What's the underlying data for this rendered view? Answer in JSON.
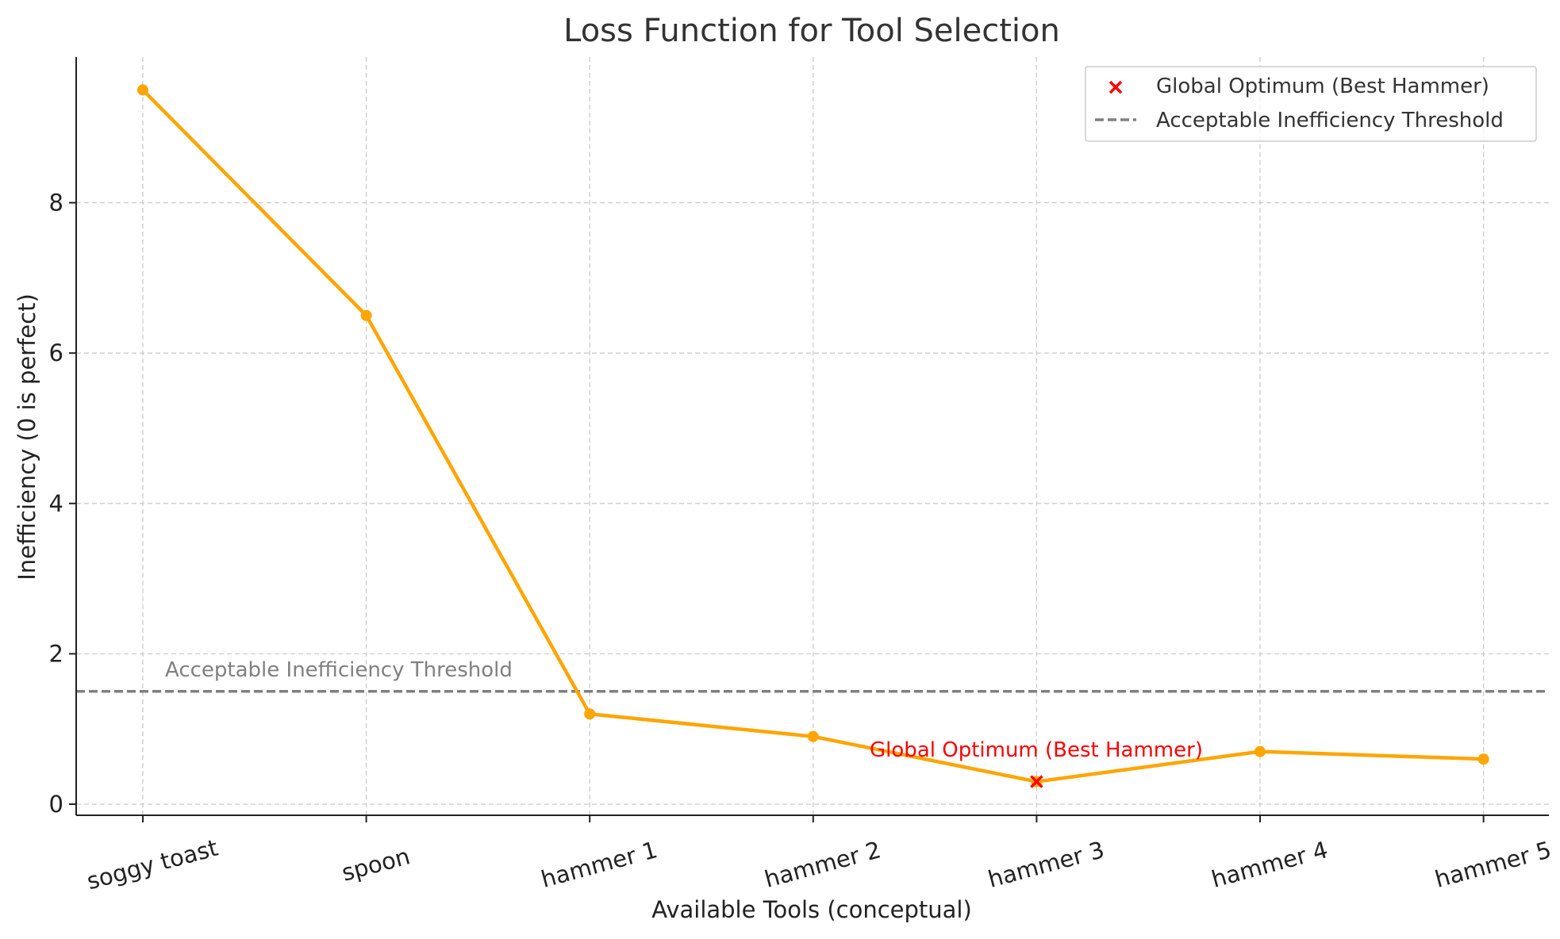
{
  "chart_data": {
    "type": "line",
    "title": "Loss Function for Tool Selection",
    "xlabel": "Available Tools (conceptual)",
    "ylabel": "Inefficiency (0 is perfect)",
    "categories": [
      "soggy toast",
      "spoon",
      "hammer 1",
      "hammer 2",
      "hammer 3",
      "hammer 4",
      "hammer 5"
    ],
    "series": [
      {
        "values": [
          9.5,
          6.5,
          1.2,
          0.9,
          0.3,
          0.7,
          0.6
        ],
        "color": "#FFA500"
      }
    ],
    "ylim": [
      -0.15,
      10.0
    ],
    "yticks": [
      0,
      2,
      4,
      6,
      8
    ],
    "grid": true,
    "threshold": {
      "value": 1.5,
      "label": "Acceptable Inefficiency Threshold",
      "color": "#808080",
      "style": "dashed"
    },
    "optimum": {
      "category": "hammer 3",
      "value": 0.3,
      "label": "Global Optimum (Best Hammer)",
      "color": "#FF0000",
      "marker": "x"
    },
    "legend": {
      "placement": "top-right",
      "entries": [
        "Global Optimum (Best Hammer)",
        "Acceptable Inefficiency Threshold"
      ]
    }
  }
}
